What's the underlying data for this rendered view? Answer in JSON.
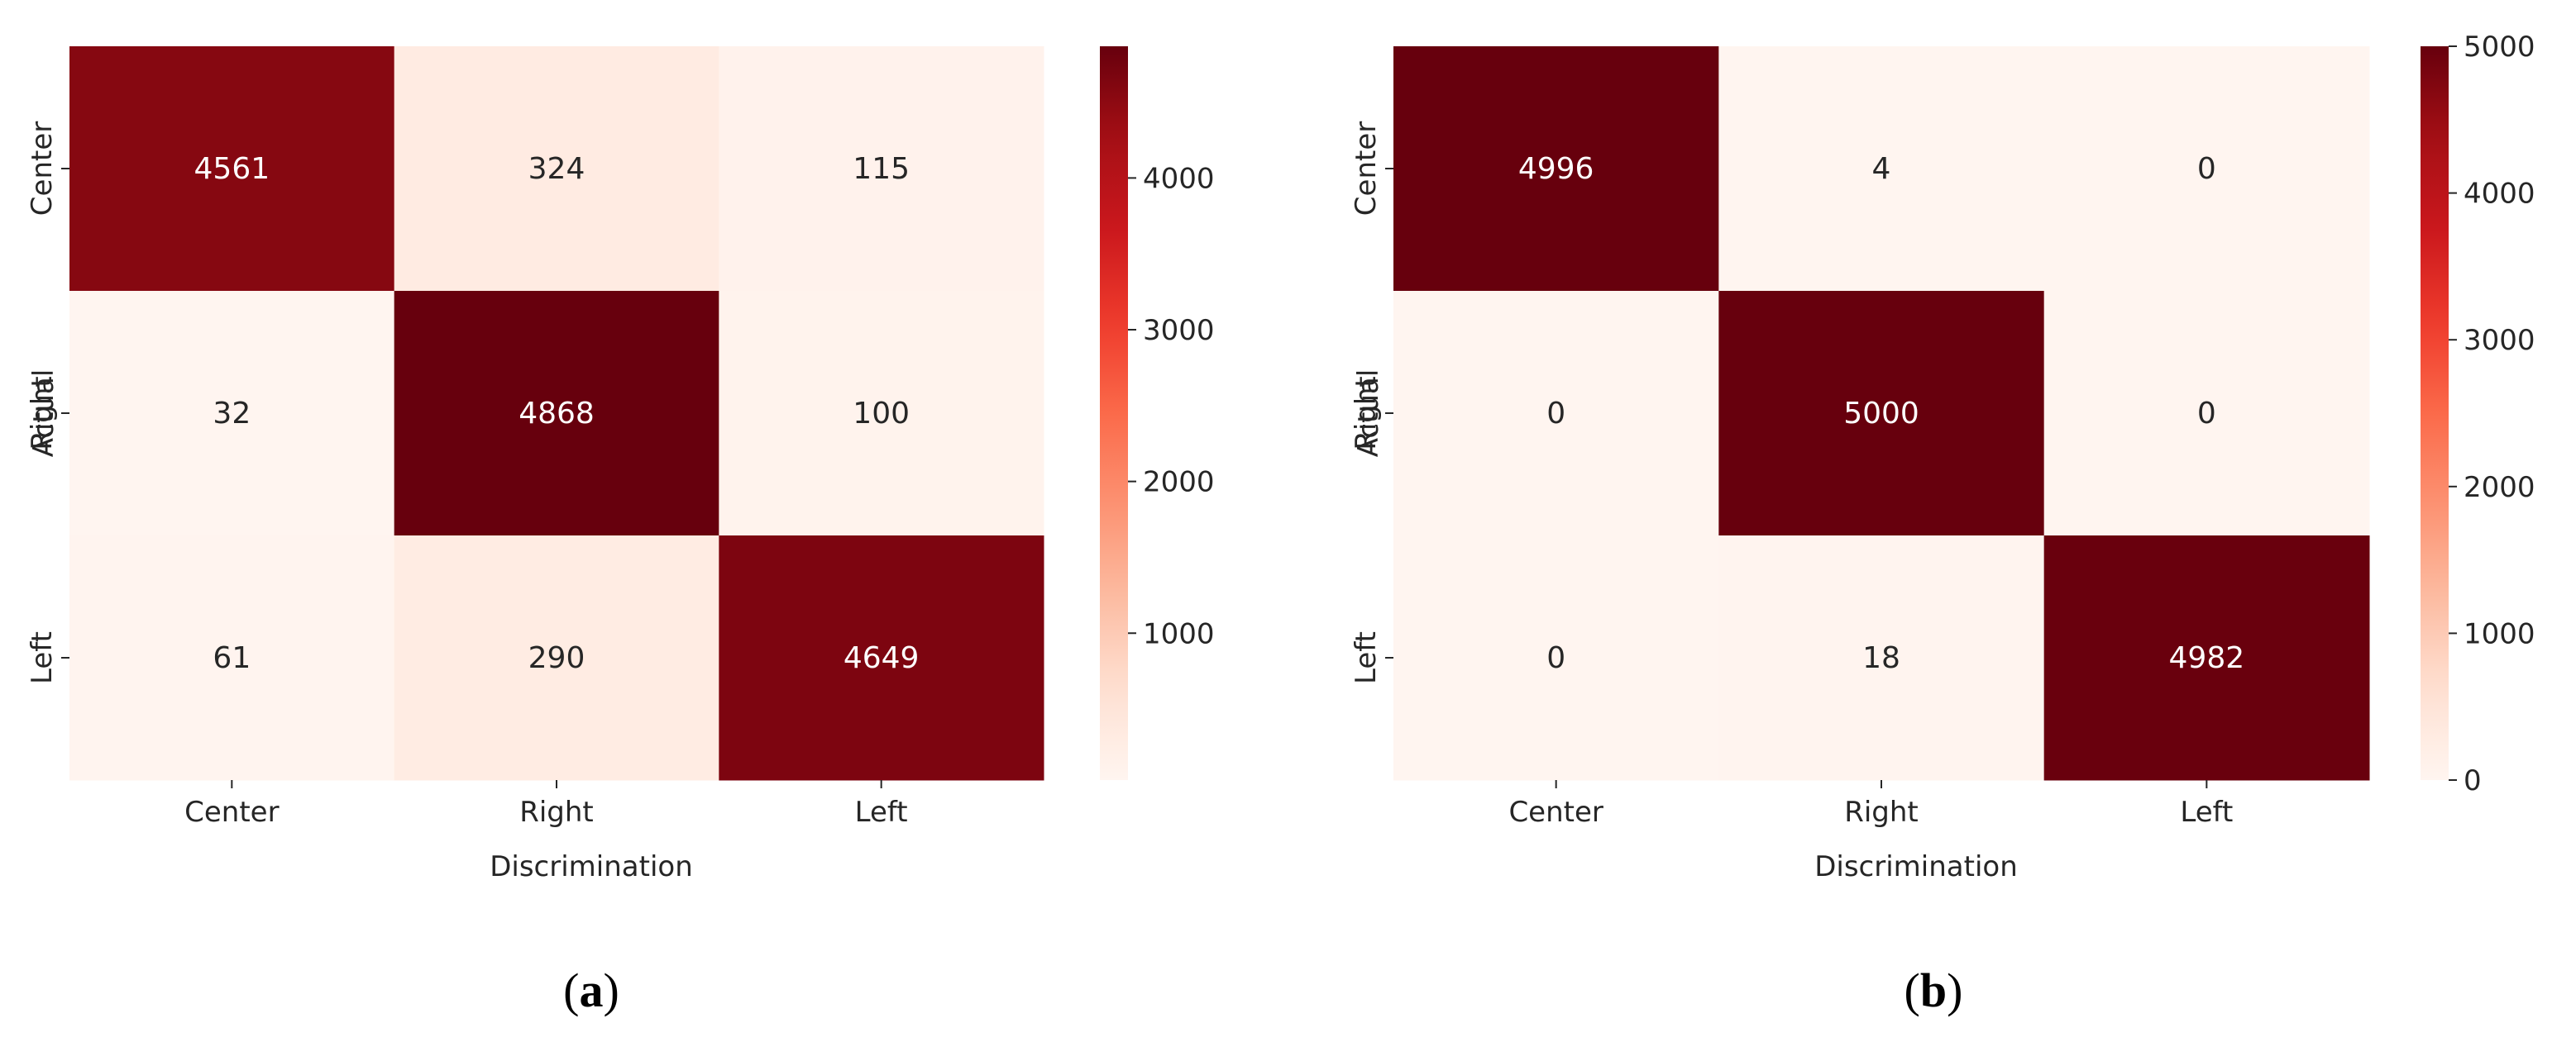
{
  "chart_data": [
    {
      "type": "heatmap",
      "panel_label": "a",
      "rows": [
        "Center",
        "Right",
        "Left"
      ],
      "columns": [
        "Center",
        "Right",
        "Left"
      ],
      "values": [
        [
          4561,
          324,
          115
        ],
        [
          32,
          4868,
          100
        ],
        [
          61,
          290,
          4649
        ]
      ],
      "xlabel": "Discrimination",
      "ylabel": "Actual",
      "colormap": "Reds",
      "color_range": [
        32,
        4868
      ],
      "colorbar_ticks": [
        "1000",
        "2000",
        "3000",
        "4000"
      ],
      "colorbar_tick_values": [
        1000,
        2000,
        3000,
        4000
      ]
    },
    {
      "type": "heatmap",
      "panel_label": "b",
      "rows": [
        "Center",
        "Right",
        "Left"
      ],
      "columns": [
        "Center",
        "Right",
        "Left"
      ],
      "values": [
        [
          4996,
          4,
          0
        ],
        [
          0,
          5000,
          0
        ],
        [
          0,
          18,
          4982
        ]
      ],
      "xlabel": "Discrimination",
      "ylabel": "Actual",
      "colormap": "Reds",
      "color_range": [
        0,
        5000
      ],
      "colorbar_ticks": [
        "0",
        "1000",
        "2000",
        "3000",
        "4000",
        "5000"
      ],
      "colorbar_tick_values": [
        0,
        1000,
        2000,
        3000,
        4000,
        5000
      ]
    }
  ]
}
